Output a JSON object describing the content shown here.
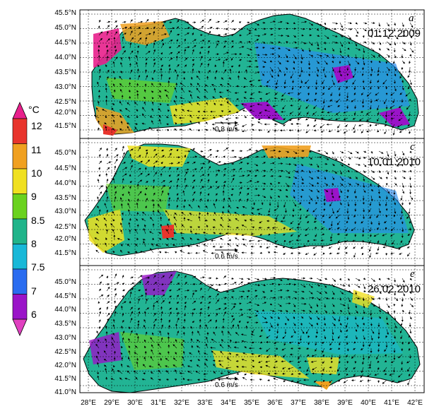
{
  "colorbar": {
    "unit": "°C",
    "labels": [
      "12",
      "11",
      "10",
      "9",
      "8.5",
      "8",
      "7.5",
      "7",
      "6"
    ],
    "colors": [
      "#e8208c",
      "#e8342c",
      "#f0a020",
      "#f0e020",
      "#6ad21e",
      "#20b48a",
      "#18b8d8",
      "#2a6cf0",
      "#9a14c8",
      "#e040c0"
    ]
  },
  "panels": [
    {
      "letter": "a",
      "date": "01.12.2009",
      "scale_label": "0.8 m/s"
    },
    {
      "letter": "c",
      "date": "10.01.2010",
      "scale_label": "0.6 m/s"
    },
    {
      "letter": "e",
      "date": "26.02.2010",
      "scale_label": "0.6 m/s"
    }
  ],
  "lat_ticks": [
    [
      "45.5°N",
      "45.0°N",
      "44.5°N",
      "44.0°N",
      "43.5°N",
      "43.0°N",
      "42.5°N",
      "42.0°N",
      "41.5°N"
    ],
    [
      "45.0°N",
      "44.5°N",
      "44.0°N",
      "43.5°N",
      "43.0°N",
      "42.5°N",
      "42.0°N",
      "41.5°N"
    ],
    [
      "45.0°N",
      "44.5°N",
      "44.0°N",
      "43.5°N",
      "43.0°N",
      "42.5°N",
      "42.0°N",
      "41.5°N",
      "41.0°N"
    ]
  ],
  "lon_ticks": [
    "28°E",
    "29°E",
    "30°E",
    "31°E",
    "32°E",
    "33°E",
    "34°E",
    "35°E",
    "36°E",
    "37°E",
    "38°E",
    "39°E",
    "40°E",
    "41°E",
    "42°E"
  ]
}
